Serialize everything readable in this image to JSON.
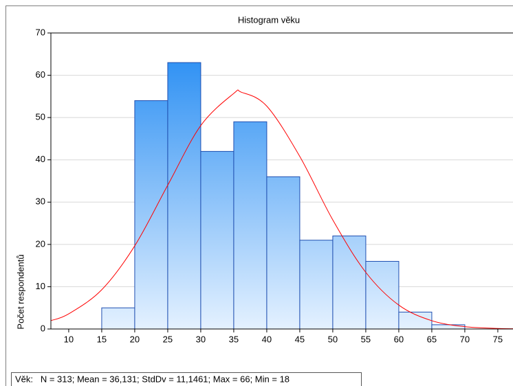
{
  "chart_data": {
    "type": "histogram",
    "title": "Histogram věku",
    "ylabel": "Počet respondentů",
    "note": "Věk:   N = 313; Mean = 36,131; StdDv = 11,1461; Max = 66; Min = 18",
    "bins": [
      15,
      20,
      25,
      30,
      35,
      40,
      45,
      50,
      55,
      60,
      65,
      70
    ],
    "values": [
      5,
      54,
      63,
      42,
      49,
      36,
      21,
      22,
      16,
      4,
      1
    ],
    "color": "#1e88f2",
    "xlim": [
      7.3,
      77.3
    ],
    "ylim": [
      0,
      70
    ],
    "xticks": [
      10,
      15,
      20,
      25,
      30,
      35,
      40,
      45,
      50,
      55,
      60,
      65,
      70,
      75
    ],
    "yticks": [
      0,
      10,
      20,
      30,
      40,
      50,
      60,
      70
    ],
    "grid": true,
    "curve": {
      "type": "line",
      "color": "#ff0000",
      "x": [
        7.3,
        10,
        15,
        20,
        25,
        30,
        35,
        36.131,
        40,
        45,
        50,
        55,
        60,
        65,
        70,
        75,
        77.3
      ],
      "values": [
        1.98,
        3.58,
        9.28,
        19.66,
        34.0,
        48.1,
        55.7,
        56.0,
        52.7,
        40.8,
        25.8,
        13.4,
        5.65,
        1.96,
        0.55,
        0.13,
        0.06
      ]
    }
  }
}
